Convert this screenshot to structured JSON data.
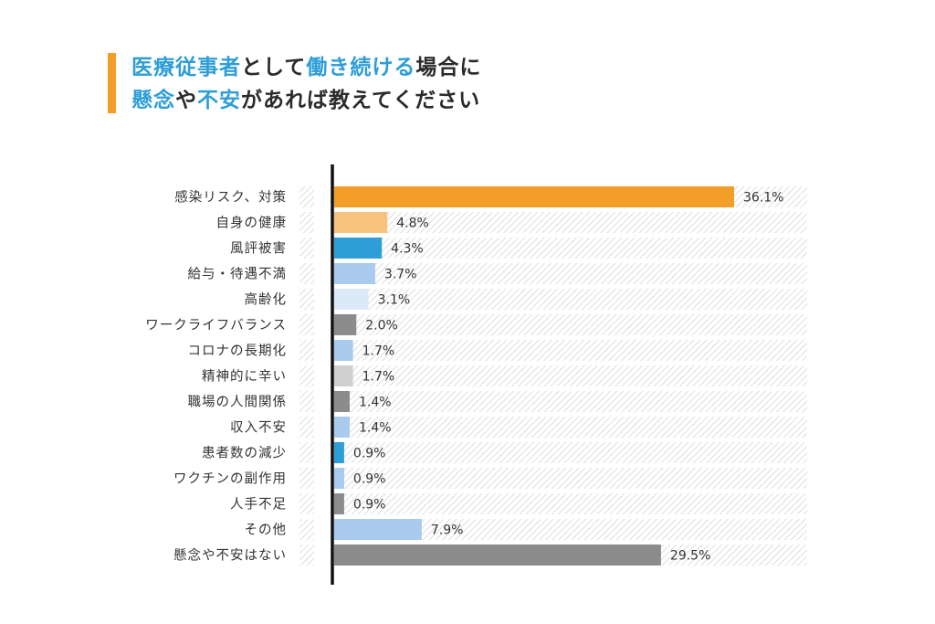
{
  "title": {
    "line1": [
      {
        "text": "医療従事者",
        "hl": true
      },
      {
        "text": "として",
        "hl": false
      },
      {
        "text": "働き続ける",
        "hl": true
      },
      {
        "text": "場合に",
        "hl": false
      }
    ],
    "line2": [
      {
        "text": "懸念",
        "hl": true
      },
      {
        "text": "や",
        "hl": false
      },
      {
        "text": "不安",
        "hl": true
      },
      {
        "text": "があれば教えてください",
        "hl": false
      }
    ]
  },
  "colors": {
    "accent": "#f29e28",
    "highlight": "#2e9ed8",
    "axis": "#111111"
  },
  "chart_data": {
    "type": "bar",
    "orientation": "horizontal",
    "title": "医療従事者として働き続ける場合に懸念や不安があれば教えてください",
    "unit": "%",
    "xlim": [
      0,
      36.1
    ],
    "categories": [
      "感染リスク、対策",
      "自身の健康",
      "風評被害",
      "給与・待遇不満",
      "高齢化",
      "ワークライフバランス",
      "コロナの長期化",
      "精神的に辛い",
      "職場の人間関係",
      "収入不安",
      "患者数の減少",
      "ワクチンの副作用",
      "人手不足",
      "その他",
      "懸念や不安はない"
    ],
    "values": [
      36.1,
      4.8,
      4.3,
      3.7,
      3.1,
      2.0,
      1.7,
      1.7,
      1.4,
      1.4,
      0.9,
      0.9,
      0.9,
      7.9,
      29.5
    ],
    "value_labels": [
      "36.1%",
      "4.8%",
      "4.3%",
      "3.7%",
      "3.1%",
      "2.0%",
      "1.7%",
      "1.7%",
      "1.4%",
      "1.4%",
      "0.9%",
      "0.9%",
      "0.9%",
      "7.9%",
      "29.5%"
    ],
    "bar_colors": [
      "#f29e28",
      "#f8c27f",
      "#2e9ed8",
      "#a9cbed",
      "#dce9f7",
      "#8c8c8c",
      "#a9cbed",
      "#d0d0d0",
      "#8c8c8c",
      "#a9cbed",
      "#2e9ed8",
      "#a9cbed",
      "#8c8c8c",
      "#a9cbed",
      "#8c8c8c"
    ]
  }
}
